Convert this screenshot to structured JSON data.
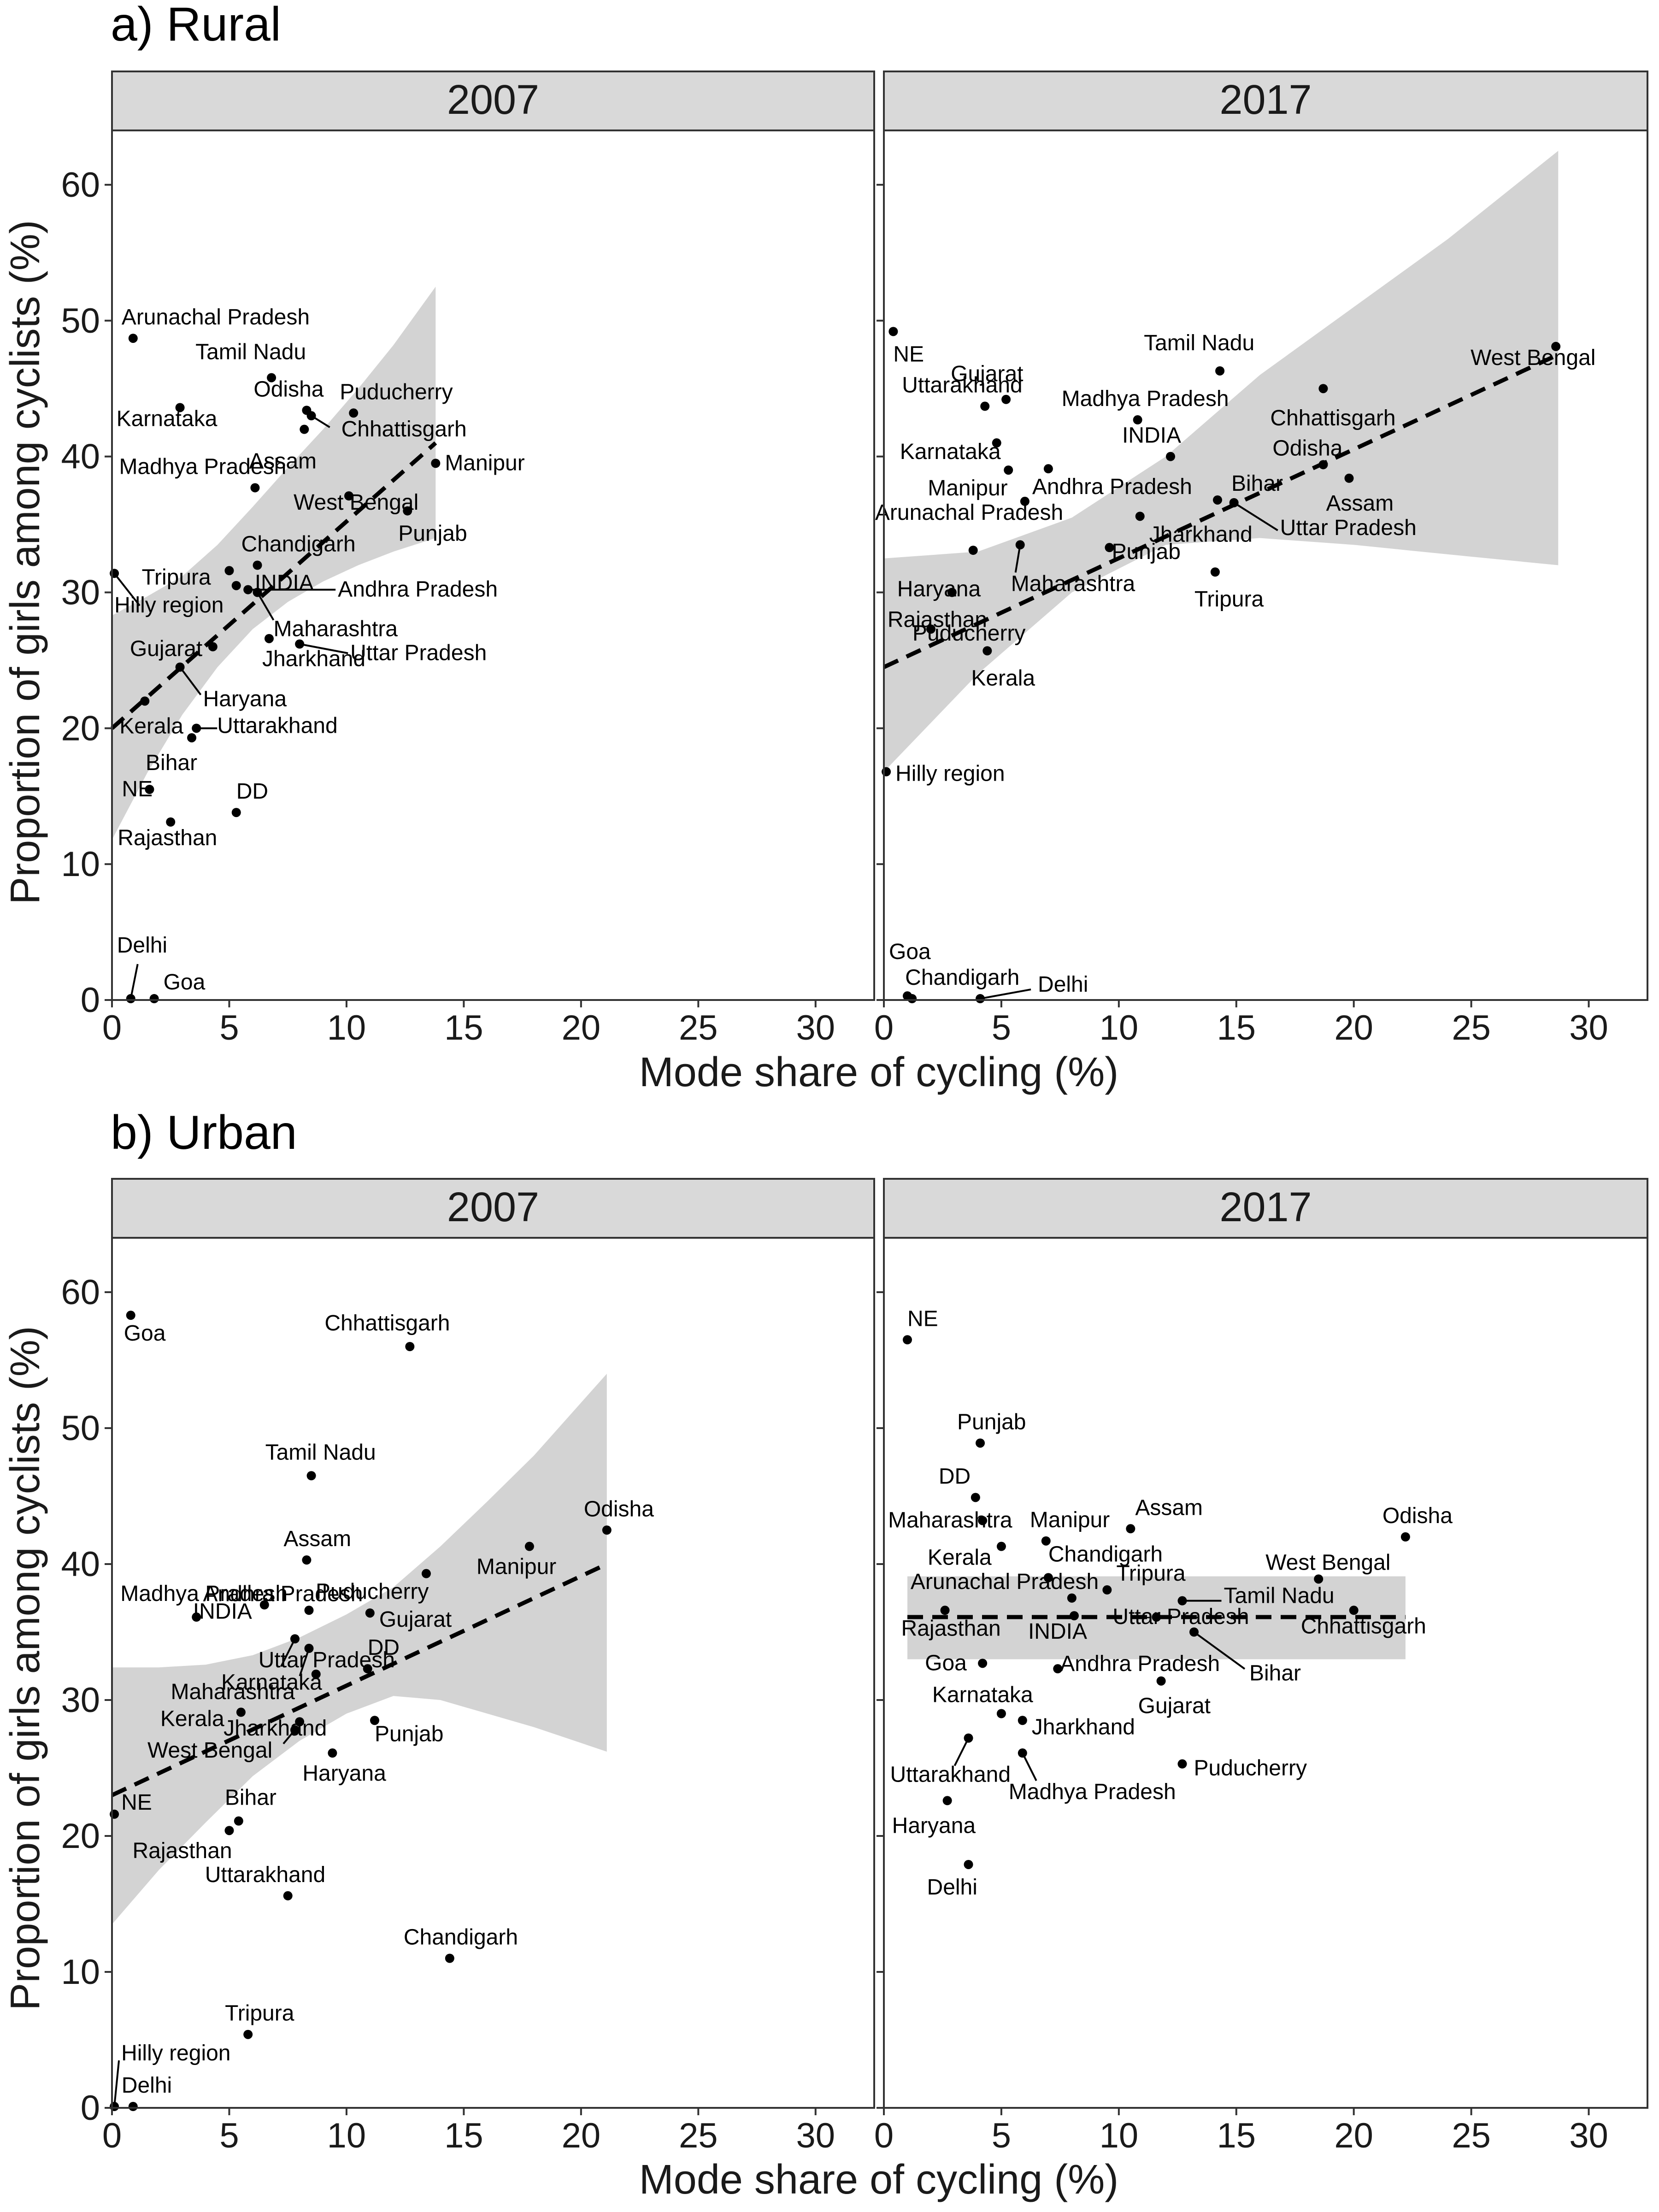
{
  "figure": {
    "x_label": "Mode share of cycling (%)",
    "y_label": "Proportion of girls among cyclists (%)"
  },
  "chart_data": [
    {
      "type": "scatter",
      "title": "a) Rural",
      "facet": "2007",
      "xlabel": "Mode share of cycling (%)",
      "ylabel": "Proportion of girls among cyclists (%)",
      "xlim": [
        0,
        32.5
      ],
      "ylim": [
        0,
        64
      ],
      "x_ticks": [
        0,
        5,
        10,
        15,
        20,
        25,
        30
      ],
      "y_ticks": [
        0,
        10,
        20,
        30,
        40,
        50,
        60
      ],
      "grid": false,
      "fit": {
        "type": "linear",
        "x": [
          0,
          13.8
        ],
        "y": [
          20.0,
          41.0
        ]
      },
      "band": {
        "x": [
          0,
          1.5,
          3.0,
          4.5,
          6.0,
          7.5,
          9.0,
          10.5,
          12.0,
          13.8
        ],
        "lower": [
          11.8,
          16.7,
          21.0,
          24.5,
          27.3,
          29.3,
          30.8,
          32.0,
          33.0,
          34.0
        ],
        "upper": [
          28.3,
          29.7,
          31.2,
          33.5,
          36.3,
          39.2,
          42.0,
          45.0,
          48.2,
          52.5
        ]
      },
      "points": [
        {
          "label": "Arunachal Pradesh",
          "x": 0.9,
          "y": 48.7
        },
        {
          "label": "Tamil Nadu",
          "x": 6.8,
          "y": 45.8
        },
        {
          "label": "Odisha",
          "x": 8.3,
          "y": 43.4
        },
        {
          "label": "Puducherry",
          "x": 10.3,
          "y": 43.2
        },
        {
          "label": "Karnataka",
          "x": 2.9,
          "y": 43.6
        },
        {
          "label": "Chhattisgarh",
          "x": 8.5,
          "y": 43.0
        },
        {
          "label": "Assam",
          "x": 8.2,
          "y": 42.0
        },
        {
          "label": "Manipur",
          "x": 13.8,
          "y": 39.5
        },
        {
          "label": "Madhya Pradesh",
          "x": 6.1,
          "y": 37.7
        },
        {
          "label": "West Bengal",
          "x": 10.1,
          "y": 37.1
        },
        {
          "label": "Punjab",
          "x": 12.6,
          "y": 36.0
        },
        {
          "label": "Chandigarh",
          "x": 6.2,
          "y": 32.0
        },
        {
          "label": "Tripura",
          "x": 5.0,
          "y": 31.6
        },
        {
          "label": "Hilly region",
          "x": 0.1,
          "y": 31.4
        },
        {
          "label": "INDIA",
          "x": 5.3,
          "y": 30.5
        },
        {
          "label": "Andhra Pradesh",
          "x": 5.8,
          "y": 30.2
        },
        {
          "label": "Maharashtra",
          "x": 6.2,
          "y": 30.0
        },
        {
          "label": "Jharkhand",
          "x": 6.7,
          "y": 26.6
        },
        {
          "label": "Uttar Pradesh",
          "x": 8.0,
          "y": 26.2
        },
        {
          "label": "Gujarat",
          "x": 4.3,
          "y": 26.0
        },
        {
          "label": "Haryana",
          "x": 2.9,
          "y": 24.5
        },
        {
          "label": "Kerala",
          "x": 1.4,
          "y": 22.0
        },
        {
          "label": "Uttarakhand",
          "x": 3.6,
          "y": 20.0
        },
        {
          "label": "Bihar",
          "x": 3.4,
          "y": 19.3
        },
        {
          "label": "NE",
          "x": 1.6,
          "y": 15.5
        },
        {
          "label": "DD",
          "x": 5.3,
          "y": 13.8
        },
        {
          "label": "Rajasthan",
          "x": 2.5,
          "y": 13.1
        },
        {
          "label": "Delhi",
          "x": 0.8,
          "y": 0.1
        },
        {
          "label": "Goa",
          "x": 1.8,
          "y": 0.1
        }
      ]
    },
    {
      "type": "scatter",
      "title": "a) Rural",
      "facet": "2017",
      "xlabel": "Mode share of cycling (%)",
      "ylabel": "Proportion of girls among cyclists (%)",
      "xlim": [
        0,
        32.5
      ],
      "ylim": [
        0,
        64
      ],
      "x_ticks": [
        0,
        5,
        10,
        15,
        20,
        25,
        30
      ],
      "y_ticks": [
        0,
        10,
        20,
        30,
        40,
        50,
        60
      ],
      "grid": false,
      "fit": {
        "type": "linear",
        "x": [
          0,
          28.7
        ],
        "y": [
          24.5,
          47.5
        ]
      },
      "band": {
        "x": [
          0,
          4,
          8,
          12,
          16,
          20,
          24,
          28.7
        ],
        "lower": [
          16.8,
          24.0,
          30.0,
          33.5,
          34.0,
          33.5,
          32.8,
          32.0
        ],
        "upper": [
          32.5,
          33.0,
          35.5,
          40.0,
          46.0,
          51.0,
          56.0,
          62.5
        ]
      },
      "points": [
        {
          "label": "NE",
          "x": 0.4,
          "y": 49.2
        },
        {
          "label": "Tamil Nadu",
          "x": 14.3,
          "y": 46.3
        },
        {
          "label": "West Bengal",
          "x": 28.6,
          "y": 48.1
        },
        {
          "label": "Gujarat",
          "x": 5.2,
          "y": 44.2
        },
        {
          "label": "Chhattisgarh",
          "x": 18.7,
          "y": 45.0
        },
        {
          "label": "Madhya Pradesh",
          "x": 10.8,
          "y": 42.7
        },
        {
          "label": "Uttarakhand",
          "x": 4.3,
          "y": 43.7
        },
        {
          "label": "INDIA",
          "x": 12.2,
          "y": 40.0
        },
        {
          "label": "Odisha",
          "x": 18.7,
          "y": 39.4
        },
        {
          "label": "Karnataka",
          "x": 4.8,
          "y": 41.0
        },
        {
          "label": "Assam",
          "x": 19.8,
          "y": 38.4
        },
        {
          "label": "Manipur",
          "x": 5.3,
          "y": 39.0
        },
        {
          "label": "Andhra Pradesh",
          "x": 7.0,
          "y": 39.1
        },
        {
          "label": "Bihar",
          "x": 14.2,
          "y": 36.8
        },
        {
          "label": "Arunachal Pradesh",
          "x": 6.0,
          "y": 36.7
        },
        {
          "label": "Jharkhand",
          "x": 10.9,
          "y": 35.6
        },
        {
          "label": "Uttar Pradesh",
          "x": 14.9,
          "y": 36.6
        },
        {
          "label": "Punjab",
          "x": 9.6,
          "y": 33.3
        },
        {
          "label": "Haryana",
          "x": 3.8,
          "y": 33.1
        },
        {
          "label": "Maharashtra",
          "x": 5.8,
          "y": 33.5
        },
        {
          "label": "Tripura",
          "x": 14.1,
          "y": 31.5
        },
        {
          "label": "Rajasthan",
          "x": 2.9,
          "y": 30.0
        },
        {
          "label": "Puducherry",
          "x": 2.0,
          "y": 27.3
        },
        {
          "label": "Kerala",
          "x": 4.4,
          "y": 25.7
        },
        {
          "label": "Hilly region",
          "x": 0.1,
          "y": 16.8
        },
        {
          "label": "Goa",
          "x": 1.0,
          "y": 0.3
        },
        {
          "label": "Chandigarh",
          "x": 1.2,
          "y": 0.1
        },
        {
          "label": "Delhi",
          "x": 4.1,
          "y": 0.1
        }
      ]
    },
    {
      "type": "scatter",
      "title": "b) Urban",
      "facet": "2007",
      "xlabel": "Mode share of cycling (%)",
      "ylabel": "Proportion of girls among cyclists (%)",
      "xlim": [
        0,
        32.5
      ],
      "ylim": [
        0,
        64
      ],
      "x_ticks": [
        0,
        5,
        10,
        15,
        20,
        25,
        30
      ],
      "y_ticks": [
        0,
        10,
        20,
        30,
        40,
        50,
        60
      ],
      "grid": false,
      "fit": {
        "type": "linear",
        "x": [
          0,
          21.1
        ],
        "y": [
          23.0,
          40.0
        ]
      },
      "band": {
        "x": [
          0,
          2,
          4,
          6,
          8,
          10,
          12,
          14,
          16,
          18,
          21.1
        ],
        "lower": [
          13.5,
          17.5,
          21.0,
          24.4,
          27.0,
          29.0,
          30.3,
          30.0,
          29.0,
          28.0,
          26.2
        ],
        "upper": [
          32.4,
          32.4,
          32.6,
          33.3,
          34.6,
          36.3,
          38.3,
          41.3,
          44.6,
          48.0,
          54.0
        ]
      },
      "points": [
        {
          "label": "Goa",
          "x": 0.8,
          "y": 58.3
        },
        {
          "label": "Chhattisgarh",
          "x": 12.7,
          "y": 56.0
        },
        {
          "label": "Tamil Nadu",
          "x": 8.5,
          "y": 46.5
        },
        {
          "label": "Odisha",
          "x": 21.1,
          "y": 42.5
        },
        {
          "label": "Manipur",
          "x": 17.8,
          "y": 41.3
        },
        {
          "label": "Assam",
          "x": 8.3,
          "y": 40.3
        },
        {
          "label": "Puducherry",
          "x": 13.4,
          "y": 39.3
        },
        {
          "label": "Andhra Pradesh",
          "x": 8.4,
          "y": 36.6
        },
        {
          "label": "Madhya Pradesh",
          "x": 3.6,
          "y": 36.1
        },
        {
          "label": "INDIA",
          "x": 6.5,
          "y": 37.0
        },
        {
          "label": "Gujarat",
          "x": 11.0,
          "y": 36.4
        },
        {
          "label": "Karnataka",
          "x": 7.8,
          "y": 34.5
        },
        {
          "label": "Maharashtra",
          "x": 8.4,
          "y": 33.8
        },
        {
          "label": "DD",
          "x": 10.9,
          "y": 32.3
        },
        {
          "label": "Uttar Pradesh",
          "x": 8.7,
          "y": 31.9
        },
        {
          "label": "Kerala",
          "x": 5.5,
          "y": 29.1
        },
        {
          "label": "Jharkhand",
          "x": 8.0,
          "y": 28.4
        },
        {
          "label": "Punjab",
          "x": 11.2,
          "y": 28.5
        },
        {
          "label": "West Bengal",
          "x": 7.8,
          "y": 27.8
        },
        {
          "label": "Haryana",
          "x": 9.4,
          "y": 26.1
        },
        {
          "label": "NE",
          "x": 0.1,
          "y": 21.6
        },
        {
          "label": "Bihar",
          "x": 5.4,
          "y": 21.1
        },
        {
          "label": "Rajasthan",
          "x": 5.0,
          "y": 20.4
        },
        {
          "label": "Uttarakhand",
          "x": 7.5,
          "y": 15.6
        },
        {
          "label": "Chandigarh",
          "x": 14.4,
          "y": 11.0
        },
        {
          "label": "Tripura",
          "x": 5.8,
          "y": 5.4
        },
        {
          "label": "Hilly region",
          "x": 0.1,
          "y": 0.1
        },
        {
          "label": "Delhi",
          "x": 0.9,
          "y": 0.1
        }
      ]
    },
    {
      "type": "scatter",
      "title": "b) Urban",
      "facet": "2017",
      "xlabel": "Mode share of cycling (%)",
      "ylabel": "Proportion of girls among cyclists (%)",
      "xlim": [
        0,
        32.5
      ],
      "ylim": [
        0,
        64
      ],
      "x_ticks": [
        0,
        5,
        10,
        15,
        20,
        25,
        30
      ],
      "y_ticks": [
        0,
        10,
        20,
        30,
        40,
        50,
        60
      ],
      "grid": false,
      "fit": {
        "type": "linear",
        "x": [
          1.0,
          22.2
        ],
        "y": [
          36.1,
          36.1
        ]
      },
      "band": {
        "x": [
          1.0,
          22.2
        ],
        "lower": [
          33.0,
          33.0
        ],
        "upper": [
          39.1,
          39.1
        ]
      },
      "points": [
        {
          "label": "NE",
          "x": 1.0,
          "y": 56.5
        },
        {
          "label": "Punjab",
          "x": 4.1,
          "y": 48.9
        },
        {
          "label": "DD",
          "x": 3.9,
          "y": 44.9
        },
        {
          "label": "Maharashtra",
          "x": 4.2,
          "y": 43.2
        },
        {
          "label": "Manipur",
          "x": 6.9,
          "y": 41.7
        },
        {
          "label": "Assam",
          "x": 10.5,
          "y": 42.6
        },
        {
          "label": "Odisha",
          "x": 22.2,
          "y": 42.0
        },
        {
          "label": "Kerala",
          "x": 5.0,
          "y": 41.3
        },
        {
          "label": "Chandigarh",
          "x": 7.0,
          "y": 39.0
        },
        {
          "label": "West Bengal",
          "x": 18.5,
          "y": 38.9
        },
        {
          "label": "Tripura",
          "x": 9.5,
          "y": 38.1
        },
        {
          "label": "Arunachal Pradesh",
          "x": 8.0,
          "y": 37.5
        },
        {
          "label": "Tamil Nadu",
          "x": 12.7,
          "y": 37.3
        },
        {
          "label": "Rajasthan",
          "x": 2.6,
          "y": 36.6
        },
        {
          "label": "INDIA",
          "x": 8.1,
          "y": 36.2
        },
        {
          "label": "Uttar Pradesh",
          "x": 11.6,
          "y": 36.1
        },
        {
          "label": "Chhattisgarh",
          "x": 20.0,
          "y": 36.6
        },
        {
          "label": "Bihar",
          "x": 13.2,
          "y": 35.0
        },
        {
          "label": "Goa",
          "x": 4.2,
          "y": 32.7
        },
        {
          "label": "Andhra Pradesh",
          "x": 7.4,
          "y": 32.3
        },
        {
          "label": "Gujarat",
          "x": 11.8,
          "y": 31.4
        },
        {
          "label": "Karnataka",
          "x": 5.0,
          "y": 29.0
        },
        {
          "label": "Jharkhand",
          "x": 5.9,
          "y": 28.5
        },
        {
          "label": "Uttarakhand",
          "x": 3.6,
          "y": 27.2
        },
        {
          "label": "Madhya Pradesh",
          "x": 5.9,
          "y": 26.1
        },
        {
          "label": "Puducherry",
          "x": 12.7,
          "y": 25.3
        },
        {
          "label": "Haryana",
          "x": 2.7,
          "y": 22.6
        },
        {
          "label": "Delhi",
          "x": 3.6,
          "y": 17.9
        }
      ]
    }
  ]
}
